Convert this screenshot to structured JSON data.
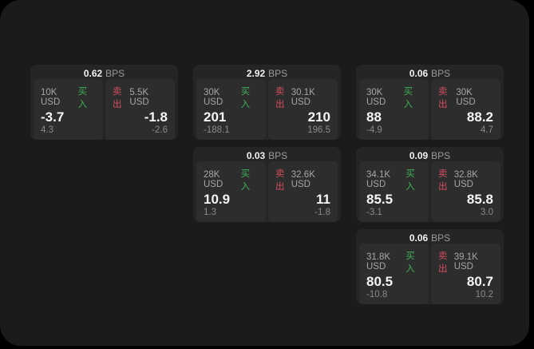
{
  "labels": {
    "bps_unit": "BPS",
    "buy": "买入",
    "sell": "卖出"
  },
  "colors": {
    "buy_green": "#3db054",
    "sell_red": "#d44d5d",
    "panel_bg": "#1b1b1b",
    "card_bg": "#252525",
    "subpanel_bg": "#2d2d2d"
  },
  "cards": [
    {
      "bps": "0.62",
      "buy": {
        "size": "10K USD",
        "price": "-3.7",
        "sub": "4.3"
      },
      "sell": {
        "size": "5.5K USD",
        "price": "-1.8",
        "sub": "-2.6"
      }
    },
    {
      "bps": "2.92",
      "buy": {
        "size": "30K USD",
        "price": "201",
        "sub": "-188.1"
      },
      "sell": {
        "size": "30.1K USD",
        "price": "210",
        "sub": "196.5"
      }
    },
    {
      "bps": "0.06",
      "buy": {
        "size": "30K USD",
        "price": "88",
        "sub": "-4.9"
      },
      "sell": {
        "size": "30K USD",
        "price": "88.2",
        "sub": "4.7"
      }
    },
    {
      "bps": "0.03",
      "buy": {
        "size": "28K USD",
        "price": "10.9",
        "sub": "1.3"
      },
      "sell": {
        "size": "32.6K USD",
        "price": "11",
        "sub": "-1.8"
      }
    },
    {
      "bps": "0.09",
      "buy": {
        "size": "34.1K USD",
        "price": "85.5",
        "sub": "-3.1"
      },
      "sell": {
        "size": "32.8K USD",
        "price": "85.8",
        "sub": "3.0"
      }
    },
    {
      "bps": "0.06",
      "buy": {
        "size": "31.8K USD",
        "price": "80.5",
        "sub": "-10.8"
      },
      "sell": {
        "size": "39.1K USD",
        "price": "80.7",
        "sub": "10.2"
      }
    }
  ]
}
